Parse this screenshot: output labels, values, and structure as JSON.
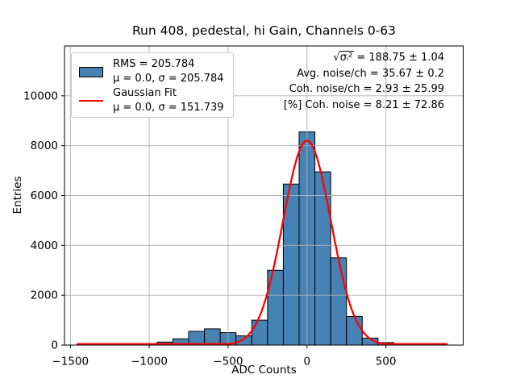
{
  "chart_data": {
    "type": "bar",
    "subtype": "histogram-with-fit",
    "title": "Run 408, pedestal, hi Gain, Channels 0-63",
    "xlabel": "ADC Counts",
    "ylabel": "Entries",
    "xlim": [
      -1537,
      990
    ],
    "ylim": [
      0,
      12000
    ],
    "xticks": [
      -1500,
      -1000,
      -500,
      0,
      500
    ],
    "yticks": [
      0,
      2000,
      4000,
      6000,
      8000,
      10000
    ],
    "grid": true,
    "grid_color": "#b0b0b0",
    "bar_color": "#4682b4",
    "bar_edge_color": "#000000",
    "bin_width": 100,
    "bins": [
      {
        "center": -900,
        "count": 120
      },
      {
        "center": -800,
        "count": 250
      },
      {
        "center": -700,
        "count": 550
      },
      {
        "center": -600,
        "count": 650
      },
      {
        "center": -500,
        "count": 500
      },
      {
        "center": -400,
        "count": 370
      },
      {
        "center": -300,
        "count": 1000
      },
      {
        "center": -200,
        "count": 3000
      },
      {
        "center": -100,
        "count": 6460
      },
      {
        "center": 0,
        "count": 8550
      },
      {
        "center": 100,
        "count": 6950
      },
      {
        "center": 200,
        "count": 3500
      },
      {
        "center": 300,
        "count": 1150
      },
      {
        "center": 400,
        "count": 280
      },
      {
        "center": 500,
        "count": 100
      }
    ],
    "gaussian_fit": {
      "mu": 0.0,
      "sigma": 151.739,
      "amplitude": 8200,
      "color": "#ff0000",
      "x_range": [
        -1460,
        892
      ]
    },
    "legend_position": "upper left"
  },
  "legend": {
    "entries": [
      {
        "swatch": "histogram-patch",
        "line1": "RMS = 205.784",
        "line2": "μ = 0.0, σ = 205.784"
      },
      {
        "swatch": "fit-line",
        "line1": "Gaussian Fit",
        "line2": "μ = 0.0, σ = 151.739"
      }
    ]
  },
  "stats": {
    "line1_radicand": "σᵢ²",
    "line1_rest": "= 188.75 ± 1.04",
    "line2": "Avg. noise/ch = 35.67 ± 0.2",
    "line3": "Coh. noise/ch = 2.93 ± 25.99",
    "line4": "[%] Coh. noise = 8.21 ± 72.86"
  }
}
